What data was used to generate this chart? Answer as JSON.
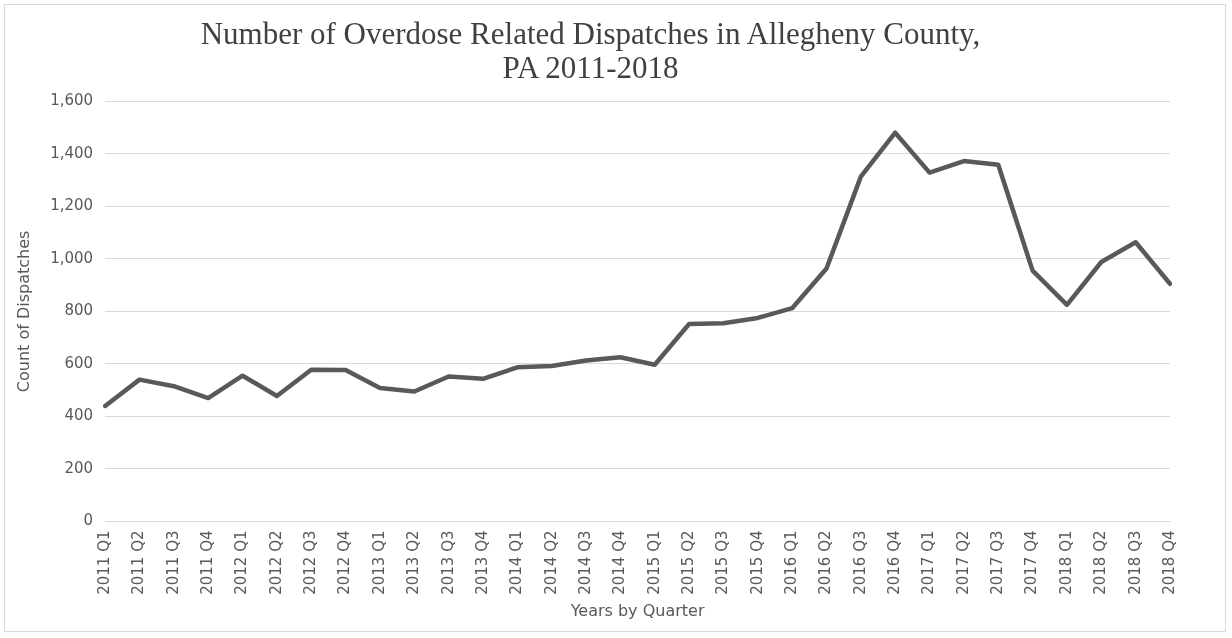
{
  "chart_data": {
    "type": "line",
    "title": [
      "Number of Overdose Related Dispatches in Allegheny County,",
      "PA 2011-2018"
    ],
    "xlabel": "Years by Quarter",
    "ylabel": "Count of Dispatches",
    "categories": [
      "2011 Q1",
      "2011 Q2",
      "2011 Q3",
      "2011 Q4",
      "2012 Q1",
      "2012 Q2",
      "2012 Q3",
      "2012 Q4",
      "2013 Q1",
      "2013 Q2",
      "2013 Q3",
      "2013 Q4",
      "2014 Q1",
      "2014 Q2",
      "2014 Q3",
      "2014 Q4",
      "2015 Q1",
      "2015 Q2",
      "2015 Q3",
      "2015 Q4",
      "2016 Q1",
      "2016 Q2",
      "2016 Q3",
      "2016 Q4",
      "2017 Q1",
      "2017 Q2",
      "2017 Q3",
      "2017 Q4",
      "2018 Q1",
      "2018 Q2",
      "2018 Q3",
      "2018 Q4"
    ],
    "series": [
      {
        "color": "#595959",
        "values": [
          440,
          540,
          515,
          470,
          555,
          478,
          578,
          577,
          508,
          495,
          552,
          543,
          587,
          592,
          613,
          625,
          597,
          752,
          755,
          775,
          812,
          963,
          1313,
          1480,
          1328,
          1372,
          1358,
          955,
          825,
          988,
          1063,
          905
        ]
      }
    ],
    "ylim": [
      0,
      1600
    ],
    "yticks": [
      {
        "value": 0,
        "label": "0"
      },
      {
        "value": 200,
        "label": "200"
      },
      {
        "value": 400,
        "label": "400"
      },
      {
        "value": 600,
        "label": "600"
      },
      {
        "value": 800,
        "label": "800"
      },
      {
        "value": 1000,
        "label": "1,000"
      },
      {
        "value": 1200,
        "label": "1,200"
      },
      {
        "value": 1400,
        "label": "1,400"
      },
      {
        "value": 1600,
        "label": "1,600"
      }
    ],
    "grid": "y",
    "legend": false,
    "marker": "none",
    "line_style": "solid"
  }
}
